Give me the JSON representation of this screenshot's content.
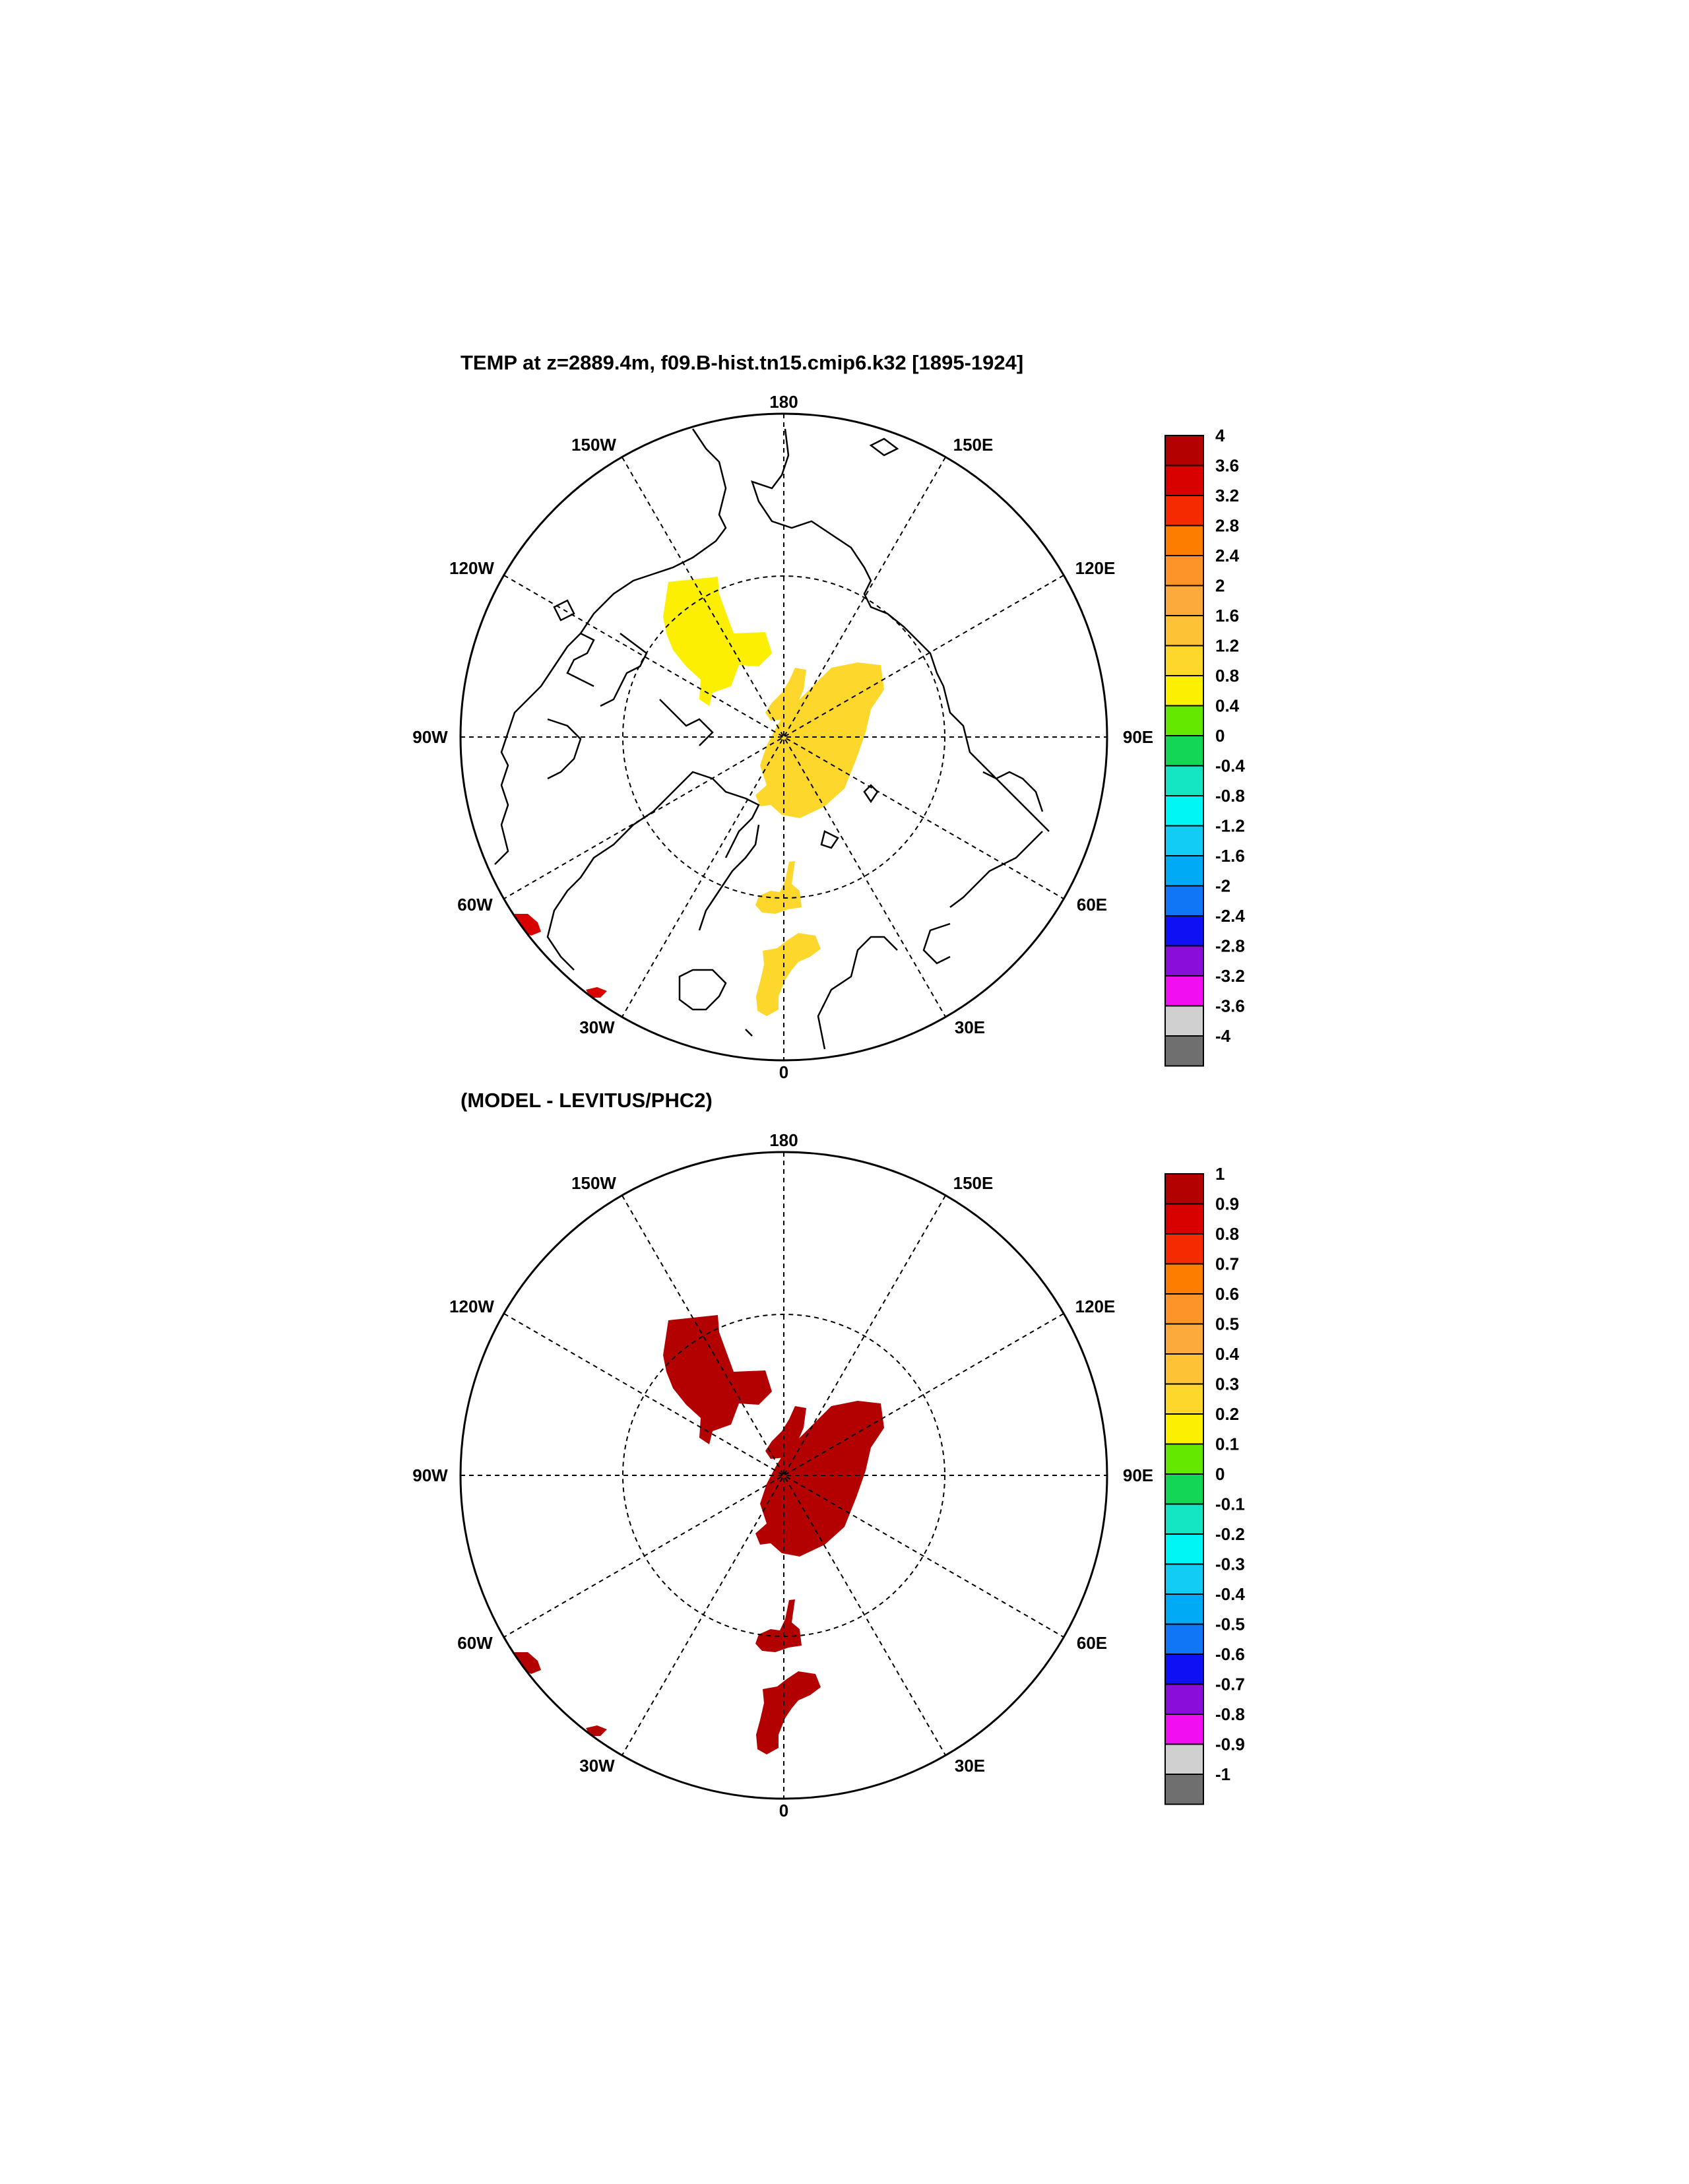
{
  "top_panel": {
    "title": "TEMP at z=2889.4m, f09.B-hist.tn15.cmip6.k32 [1895-1924]",
    "lon_labels": [
      "180",
      "150E",
      "120E",
      "90E",
      "60E",
      "30E",
      "0",
      "30W",
      "60W",
      "90W",
      "120W",
      "150W"
    ],
    "colorbar": {
      "labels": [
        "4",
        "3.6",
        "3.2",
        "2.8",
        "2.4",
        "2",
        "1.6",
        "1.2",
        "0.8",
        "0.4",
        "0",
        "-0.4",
        "-0.8",
        "-1.2",
        "-1.6",
        "-2",
        "-2.4",
        "-2.8",
        "-3.2",
        "-3.6",
        "-4"
      ],
      "colors": [
        "#b30000",
        "#d90000",
        "#f52a00",
        "#fc7d00",
        "#fd9429",
        "#fdaa3c",
        "#fdc236",
        "#fdd72c",
        "#fcf000",
        "#65e800",
        "#12d654",
        "#14e5c3",
        "#00f5f5",
        "#13ccf5",
        "#01aaf5",
        "#1176f5",
        "#1010f5",
        "#8a0dd9",
        "#f00ff0",
        "#d0d0d0",
        "#6f6f6f"
      ]
    }
  },
  "bottom_panel": {
    "title": "(MODEL - LEVITUS/PHC2)",
    "lon_labels": [
      "180",
      "150E",
      "120E",
      "90E",
      "60E",
      "30E",
      "0",
      "30W",
      "60W",
      "90W",
      "120W",
      "150W"
    ],
    "colorbar": {
      "labels": [
        "1",
        "0.9",
        "0.8",
        "0.7",
        "0.6",
        "0.5",
        "0.4",
        "0.3",
        "0.2",
        "0.1",
        "0",
        "-0.1",
        "-0.2",
        "-0.3",
        "-0.4",
        "-0.5",
        "-0.6",
        "-0.7",
        "-0.8",
        "-0.9",
        "-1"
      ],
      "colors": [
        "#b30000",
        "#d90000",
        "#f52a00",
        "#fc7d00",
        "#fd9429",
        "#fdaa3c",
        "#fdc236",
        "#fdd72c",
        "#fcf000",
        "#65e800",
        "#12d654",
        "#14e5c3",
        "#00f5f5",
        "#13ccf5",
        "#01aaf5",
        "#1176f5",
        "#1010f5",
        "#8a0dd9",
        "#f00ff0",
        "#d0d0d0",
        "#6f6f6f"
      ]
    },
    "anomaly_color": "#b30000"
  },
  "field_colors": {
    "top_main": "#fdd72c",
    "top_yellow": "#fcf000",
    "top_red": "#d90000",
    "bottom": "#b30000"
  }
}
